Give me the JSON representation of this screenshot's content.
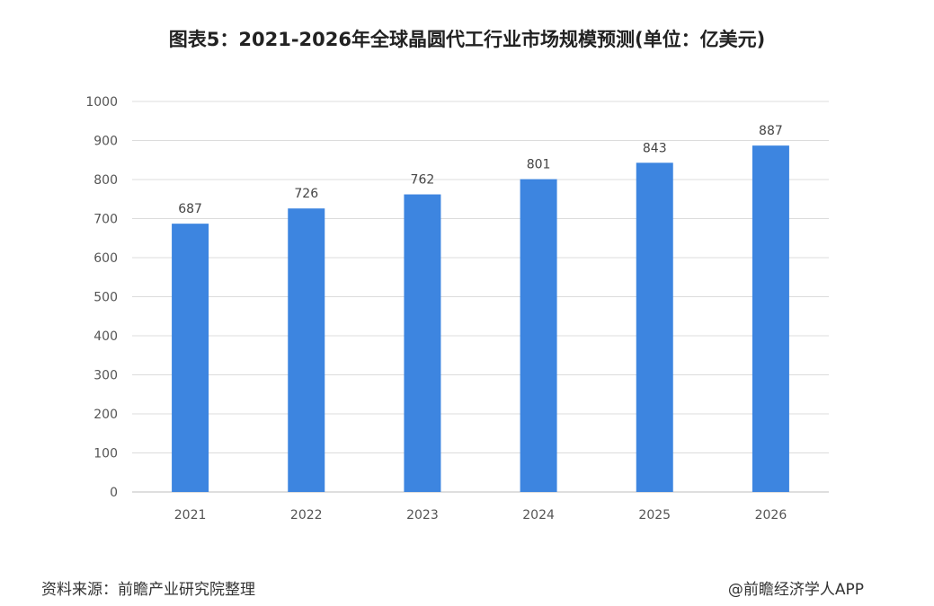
{
  "title": "图表5：2021-2026年全球晶圆代工行业市场规模预测(单位：亿美元)",
  "source": "资料来源：前瞻产业研究院整理",
  "credit": "@前瞻经济学人APP",
  "chart_data": {
    "type": "bar",
    "categories": [
      "2021",
      "2022",
      "2023",
      "2024",
      "2025",
      "2026"
    ],
    "values": [
      687,
      726,
      762,
      801,
      843,
      887
    ],
    "ylim": [
      0,
      1000
    ],
    "yticks": [
      0,
      100,
      200,
      300,
      400,
      500,
      600,
      700,
      800,
      900,
      1000
    ],
    "grid": true,
    "bar_color": "#3d85e0",
    "data_labels": true
  }
}
